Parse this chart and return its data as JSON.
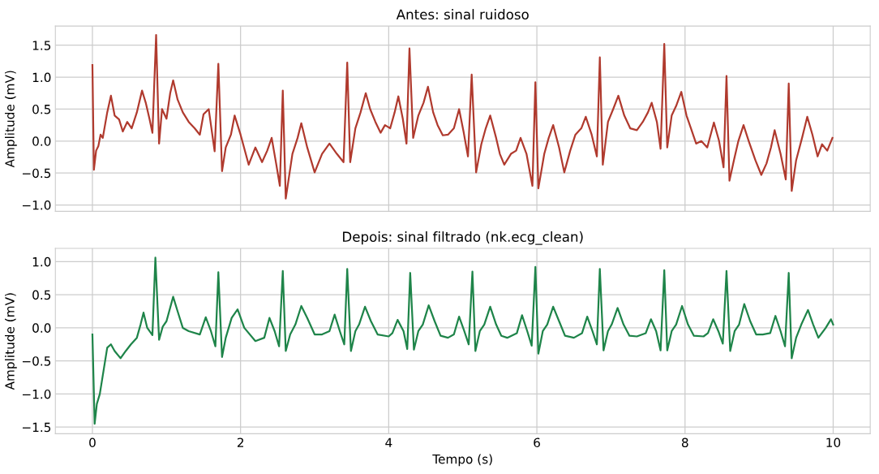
{
  "chart_data": [
    {
      "type": "line",
      "title": "Antes: sinal ruidoso",
      "ylabel": "Amplitude (mV)",
      "grid": true,
      "tick_labels": "y",
      "line_style": "solid",
      "xlim": [
        -0.5,
        10.5
      ],
      "xticks": [
        0,
        2,
        4,
        6,
        8,
        10
      ],
      "ylim": [
        -1.1,
        1.8
      ],
      "yticks": [
        {
          "value": -1,
          "label": "−1.0"
        },
        {
          "value": -0.5,
          "label": "−0.5"
        },
        {
          "value": 0,
          "label": "0.0"
        },
        {
          "value": 0.5,
          "label": "0.5"
        },
        {
          "value": 1,
          "label": "1.0"
        },
        {
          "value": 1.5,
          "label": "1.5"
        }
      ],
      "series": [
        {
          "color": "#b03a2e",
          "x": [
            0,
            0.02,
            0.05,
            0.08,
            0.11,
            0.14,
            0.2,
            0.25,
            0.3,
            0.36,
            0.41,
            0.47,
            0.53,
            0.6,
            0.67,
            0.72,
            0.77,
            0.81,
            0.86,
            0.9,
            0.94,
            1.0,
            1.05,
            1.09,
            1.15,
            1.22,
            1.3,
            1.38,
            1.45,
            1.5,
            1.57,
            1.65,
            1.7,
            1.75,
            1.8,
            1.87,
            1.92,
            2.0,
            2.11,
            2.2,
            2.29,
            2.36,
            2.42,
            2.48,
            2.53,
            2.57,
            2.61,
            2.7,
            2.77,
            2.82,
            2.9,
            3.0,
            3.1,
            3.2,
            3.3,
            3.39,
            3.44,
            3.48,
            3.55,
            3.62,
            3.69,
            3.75,
            3.82,
            3.89,
            3.95,
            4.02,
            4.08,
            4.13,
            4.19,
            4.24,
            4.28,
            4.33,
            4.4,
            4.47,
            4.53,
            4.6,
            4.66,
            4.73,
            4.8,
            4.88,
            4.95,
            5.01,
            5.07,
            5.12,
            5.18,
            5.25,
            5.31,
            5.37,
            5.45,
            5.5,
            5.56,
            5.65,
            5.72,
            5.78,
            5.86,
            5.94,
            5.98,
            6.02,
            6.1,
            6.16,
            6.22,
            6.3,
            6.37,
            6.45,
            6.52,
            6.6,
            6.66,
            6.74,
            6.81,
            6.85,
            6.89,
            6.96,
            7.03,
            7.1,
            7.18,
            7.26,
            7.35,
            7.43,
            7.5,
            7.55,
            7.62,
            7.67,
            7.72,
            7.76,
            7.82,
            7.88,
            7.95,
            8.02,
            8.08,
            8.15,
            8.22,
            8.3,
            8.39,
            8.46,
            8.52,
            8.56,
            8.6,
            8.66,
            8.72,
            8.79,
            8.86,
            8.95,
            9.03,
            9.1,
            9.16,
            9.21,
            9.29,
            9.36,
            9.4,
            9.44,
            9.5,
            9.58,
            9.65,
            9.72,
            9.79,
            9.85,
            9.92,
            9.99
          ],
          "values": [
            1.19,
            -0.45,
            -0.15,
            -0.08,
            0.1,
            0.05,
            0.45,
            0.71,
            0.4,
            0.34,
            0.15,
            0.3,
            0.2,
            0.45,
            0.79,
            0.6,
            0.35,
            0.13,
            1.66,
            -0.04,
            0.5,
            0.35,
            0.75,
            0.95,
            0.65,
            0.45,
            0.3,
            0.2,
            0.1,
            0.42,
            0.5,
            -0.16,
            1.21,
            -0.47,
            -0.1,
            0.1,
            0.4,
            0.1,
            -0.37,
            -0.1,
            -0.33,
            -0.15,
            0.05,
            -0.35,
            -0.7,
            0.79,
            -0.9,
            -0.2,
            0.05,
            0.28,
            -0.1,
            -0.49,
            -0.2,
            -0.04,
            -0.2,
            -0.33,
            1.23,
            -0.33,
            0.2,
            0.45,
            0.75,
            0.5,
            0.3,
            0.13,
            0.25,
            0.2,
            0.45,
            0.7,
            0.35,
            -0.04,
            1.45,
            0.05,
            0.4,
            0.6,
            0.85,
            0.45,
            0.25,
            0.09,
            0.1,
            0.2,
            0.5,
            0.15,
            -0.24,
            1.04,
            -0.49,
            -0.05,
            0.2,
            0.4,
            0.05,
            -0.2,
            -0.37,
            -0.2,
            -0.15,
            0.05,
            -0.2,
            -0.7,
            0.92,
            -0.74,
            -0.2,
            0.05,
            0.25,
            -0.1,
            -0.49,
            -0.15,
            0.1,
            0.2,
            0.38,
            0.1,
            -0.24,
            1.31,
            -0.37,
            0.3,
            0.5,
            0.71,
            0.4,
            0.2,
            0.17,
            0.3,
            0.45,
            0.6,
            0.3,
            -0.12,
            1.52,
            -0.1,
            0.4,
            0.55,
            0.77,
            0.4,
            0.2,
            -0.04,
            0.0,
            -0.1,
            0.29,
            0.0,
            -0.41,
            1.02,
            -0.62,
            -0.3,
            0.0,
            0.25,
            0.0,
            -0.3,
            -0.53,
            -0.35,
            -0.1,
            0.17,
            -0.2,
            -0.6,
            0.9,
            -0.78,
            -0.3,
            0.05,
            0.38,
            0.1,
            -0.24,
            -0.05,
            -0.15,
            0.05
          ]
        }
      ]
    },
    {
      "type": "line",
      "title": "Depois: sinal filtrado (nk.ecg_clean)",
      "xlabel": "Tempo (s)",
      "ylabel": "Amplitude (mV)",
      "grid": true,
      "line_style": "solid",
      "xlim": [
        -0.5,
        10.5
      ],
      "xticks": [
        0,
        2,
        4,
        6,
        8,
        10
      ],
      "ylim": [
        -1.6,
        1.2
      ],
      "yticks": [
        {
          "value": -1.5,
          "label": "−1.5"
        },
        {
          "value": -1,
          "label": "−1.0"
        },
        {
          "value": -0.5,
          "label": "−0.5"
        },
        {
          "value": 0,
          "label": "0.0"
        },
        {
          "value": 0.5,
          "label": "0.5"
        },
        {
          "value": 1,
          "label": "1.0"
        }
      ],
      "series": [
        {
          "color": "#1e8449",
          "x": [
            0,
            0.03,
            0.06,
            0.1,
            0.15,
            0.2,
            0.25,
            0.3,
            0.38,
            0.45,
            0.52,
            0.6,
            0.65,
            0.69,
            0.74,
            0.81,
            0.85,
            0.9,
            0.95,
            1.0,
            1.09,
            1.15,
            1.22,
            1.3,
            1.45,
            1.53,
            1.6,
            1.66,
            1.7,
            1.75,
            1.8,
            1.88,
            1.96,
            2.05,
            2.2,
            2.32,
            2.39,
            2.46,
            2.52,
            2.57,
            2.61,
            2.67,
            2.74,
            2.82,
            2.9,
            3.0,
            3.1,
            3.2,
            3.27,
            3.34,
            3.4,
            3.44,
            3.49,
            3.55,
            3.6,
            3.68,
            3.76,
            3.85,
            4.0,
            4.05,
            4.12,
            4.2,
            4.25,
            4.29,
            4.34,
            4.4,
            4.46,
            4.54,
            4.62,
            4.7,
            4.8,
            4.88,
            4.95,
            5.02,
            5.08,
            5.13,
            5.17,
            5.23,
            5.29,
            5.37,
            5.45,
            5.52,
            5.6,
            5.73,
            5.8,
            5.87,
            5.93,
            5.98,
            6.02,
            6.08,
            6.14,
            6.22,
            6.3,
            6.38,
            6.5,
            6.61,
            6.68,
            6.75,
            6.81,
            6.85,
            6.9,
            6.96,
            7.01,
            7.09,
            7.17,
            7.25,
            7.35,
            7.47,
            7.54,
            7.61,
            7.67,
            7.72,
            7.76,
            7.82,
            7.88,
            7.96,
            8.04,
            8.12,
            8.25,
            8.31,
            8.38,
            8.45,
            8.51,
            8.56,
            8.61,
            8.67,
            8.73,
            8.8,
            8.88,
            8.96,
            9.05,
            9.15,
            9.22,
            9.29,
            9.35,
            9.4,
            9.44,
            9.5,
            9.57,
            9.66,
            9.73,
            9.8,
            9.9,
            9.97,
            10.0
          ],
          "values": [
            -0.1,
            -1.45,
            -1.15,
            -1.0,
            -0.65,
            -0.3,
            -0.25,
            -0.35,
            -0.46,
            -0.35,
            -0.25,
            -0.15,
            0.05,
            0.23,
            0.0,
            -0.11,
            1.06,
            -0.18,
            0.02,
            0.1,
            0.47,
            0.25,
            0.0,
            -0.05,
            -0.1,
            0.16,
            -0.05,
            -0.28,
            0.84,
            -0.44,
            -0.15,
            0.15,
            0.28,
            0.0,
            -0.2,
            -0.15,
            0.15,
            -0.05,
            -0.28,
            0.86,
            -0.35,
            -0.1,
            0.05,
            0.33,
            0.15,
            -0.1,
            -0.1,
            -0.05,
            0.2,
            -0.05,
            -0.25,
            0.89,
            -0.35,
            -0.05,
            0.05,
            0.32,
            0.1,
            -0.1,
            -0.13,
            -0.08,
            0.12,
            -0.05,
            -0.32,
            0.83,
            -0.33,
            -0.05,
            0.05,
            0.34,
            0.1,
            -0.12,
            -0.15,
            -0.1,
            0.17,
            -0.05,
            -0.25,
            0.85,
            -0.35,
            -0.05,
            0.05,
            0.32,
            0.05,
            -0.12,
            -0.15,
            -0.08,
            0.19,
            -0.05,
            -0.27,
            0.92,
            -0.39,
            -0.05,
            0.05,
            0.32,
            0.1,
            -0.12,
            -0.15,
            -0.08,
            0.17,
            -0.05,
            -0.25,
            0.89,
            -0.34,
            -0.05,
            0.05,
            0.3,
            0.05,
            -0.12,
            -0.13,
            -0.08,
            0.13,
            -0.05,
            -0.34,
            0.87,
            -0.34,
            -0.05,
            0.05,
            0.33,
            0.05,
            -0.12,
            -0.13,
            -0.08,
            0.13,
            -0.05,
            -0.24,
            0.86,
            -0.35,
            -0.05,
            0.05,
            0.36,
            0.1,
            -0.1,
            -0.1,
            -0.08,
            0.18,
            -0.05,
            -0.28,
            0.83,
            -0.46,
            -0.15,
            0.05,
            0.27,
            0.05,
            -0.15,
            0.0,
            0.13,
            0.05
          ]
        }
      ]
    }
  ]
}
